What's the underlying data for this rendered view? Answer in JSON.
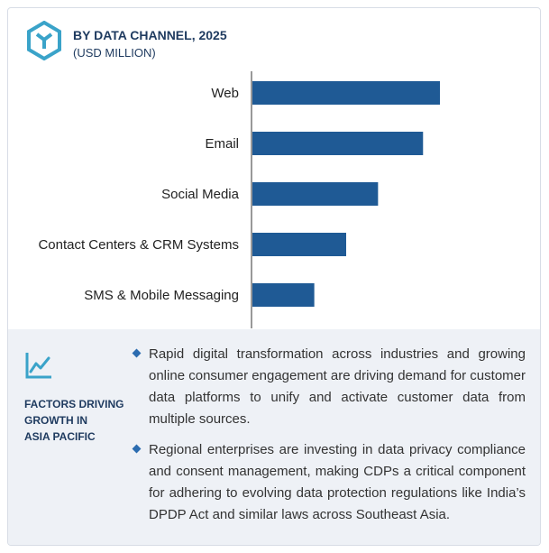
{
  "header": {
    "title": "BY DATA CHANNEL, 2025",
    "subtitle": "(USD MILLION)",
    "logo_icon": "hexagon-logo-icon"
  },
  "chart_data": {
    "type": "bar",
    "orientation": "horizontal",
    "categories": [
      "Web",
      "Email",
      "Social Media",
      "Contact Centers & CRM Systems",
      "SMS & Mobile Messaging"
    ],
    "values": [
      100,
      91,
      67,
      50,
      33
    ],
    "bar_color": "#1f5a95",
    "axis_labels_shown": false,
    "grid": false
  },
  "factors": {
    "icon": "trend-line-icon",
    "heading_lines": [
      "FACTORS DRIVING",
      "GROWTH IN",
      "ASIA PACIFIC"
    ],
    "points": [
      "Rapid digital transformation across industries and growing online consumer engagement are driving demand for customer data platforms to unify and activate customer data from multiple sources.",
      "Regional enterprises are investing in data privacy compliance and consent management, making CDPs a critical component for adhering to evolving data protection regulations like India’s DPDP Act and similar laws across Southeast Asia."
    ]
  }
}
